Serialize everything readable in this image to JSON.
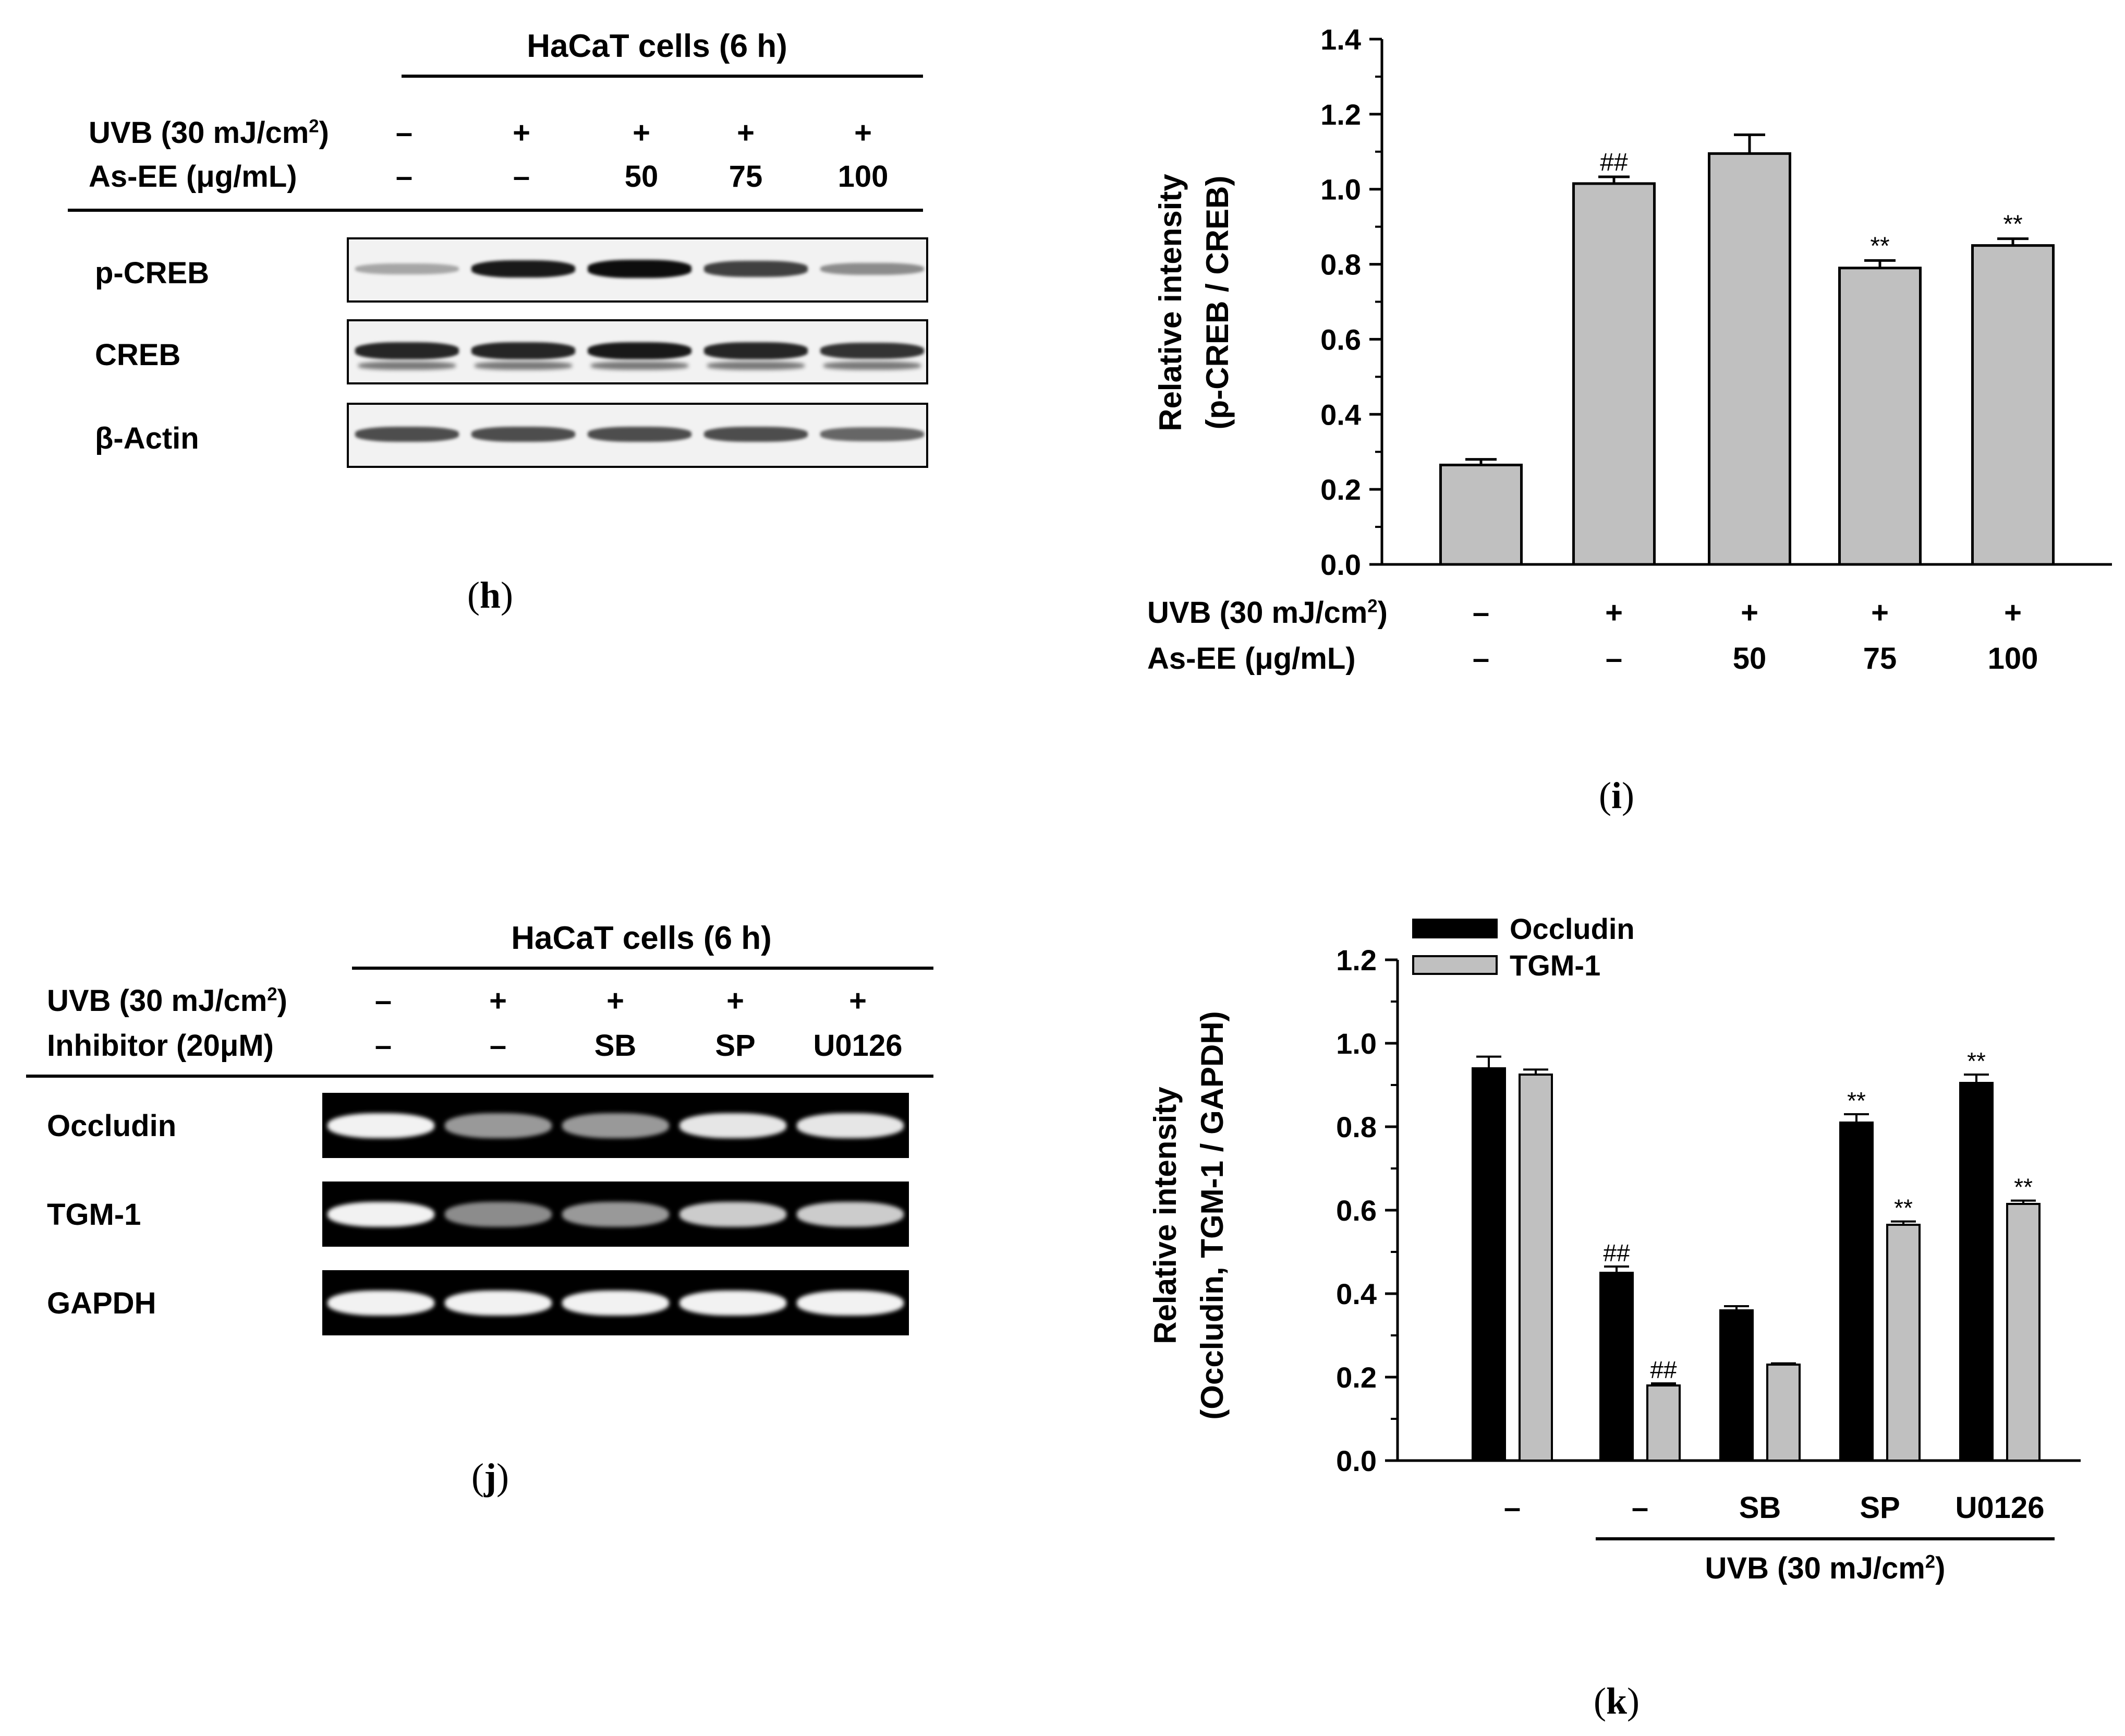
{
  "panel_h": {
    "title": "HaCaT cells (6 h)",
    "row1_label": "UVB (30 mJ/cm",
    "row1_sup": "2",
    "row1_label_end": ")",
    "row1_values": [
      "–",
      "+",
      "+",
      "+",
      "+"
    ],
    "row2_label": "As-EE (μg/mL)",
    "row2_values": [
      "–",
      "–",
      "50",
      "75",
      "100"
    ],
    "bands": [
      {
        "label": "p-CREB",
        "intensity": [
          0.35,
          0.9,
          0.95,
          0.75,
          0.45
        ]
      },
      {
        "label": "CREB",
        "intensity": [
          0.85,
          0.85,
          0.9,
          0.85,
          0.8
        ]
      },
      {
        "label": "β-Actin",
        "intensity": [
          0.7,
          0.7,
          0.7,
          0.7,
          0.6
        ]
      }
    ],
    "panel_label": "h"
  },
  "panel_i": {
    "ylabel_line1": "Relative intensity",
    "ylabel_line2": "(p-CREB / CREB)",
    "row1_label": "UVB (30 mJ/cm",
    "row1_sup": "2",
    "row1_label_end": ")",
    "row1_values": [
      "–",
      "+",
      "+",
      "+",
      "+"
    ],
    "row2_label": "As-EE (μg/mL)",
    "row2_values": [
      "–",
      "–",
      "50",
      "75",
      "100"
    ],
    "panel_label": "i"
  },
  "panel_j": {
    "title": "HaCaT cells (6 h)",
    "row1_label": "UVB (30 mJ/cm",
    "row1_sup": "2",
    "row1_label_end": ")",
    "row1_values": [
      "–",
      "+",
      "+",
      "+",
      "+"
    ],
    "row2_label": "Inhibitor (20μM)",
    "row2_values": [
      "–",
      "–",
      "SB",
      "SP",
      "U0126"
    ],
    "bands": [
      {
        "label": "Occludin",
        "intensity": [
          0.95,
          0.6,
          0.6,
          0.9,
          0.9
        ]
      },
      {
        "label": "TGM-1",
        "intensity": [
          0.95,
          0.55,
          0.6,
          0.8,
          0.8
        ]
      },
      {
        "label": "GAPDH",
        "intensity": [
          0.95,
          0.95,
          0.95,
          0.95,
          0.95
        ]
      }
    ],
    "panel_label": "j"
  },
  "panel_k": {
    "ylabel_line1": "Relative intensity",
    "ylabel_line2": "(Occludin, TGM-1 / GAPDH)",
    "group_caption": "UVB (30 mJ/cm",
    "group_caption_sup": "2",
    "group_caption_end": ")",
    "panel_label": "k"
  },
  "colors": {
    "bar_gray": "#c0c0c0",
    "bar_black": "#000000",
    "axis": "#000000"
  },
  "chart_data": [
    {
      "type": "bar",
      "panel": "i",
      "categories": [
        "–",
        "–",
        "50",
        "75",
        "100"
      ],
      "values": [
        0.265,
        1.015,
        1.095,
        0.79,
        0.85
      ],
      "errors": [
        0.015,
        0.018,
        0.05,
        0.02,
        0.018
      ],
      "annotations": [
        "",
        "##",
        "",
        "**",
        "**"
      ],
      "ylim": [
        0.0,
        1.4
      ],
      "yticks": [
        "0.0",
        "0.2",
        "0.4",
        "0.6",
        "0.8",
        "1.0",
        "1.2",
        "1.4"
      ],
      "ylabel": "Relative intensity (p-CREB / CREB)",
      "grid": false
    },
    {
      "type": "bar",
      "panel": "k",
      "categories": [
        "–",
        "–",
        "SB",
        "SP",
        "U0126"
      ],
      "series": [
        {
          "name": "Occludin",
          "color": "#000000",
          "values": [
            0.94,
            0.45,
            0.36,
            0.81,
            0.905
          ],
          "errors": [
            0.028,
            0.015,
            0.01,
            0.02,
            0.02
          ],
          "annotations": [
            "",
            "##",
            "",
            "**",
            "**"
          ]
        },
        {
          "name": "TGM-1",
          "color": "#c0c0c0",
          "values": [
            0.925,
            0.18,
            0.23,
            0.565,
            0.615
          ],
          "errors": [
            0.012,
            0.005,
            0.003,
            0.008,
            0.008
          ],
          "annotations": [
            "",
            "##",
            "",
            "**",
            "**"
          ]
        }
      ],
      "ylim": [
        0.0,
        1.2
      ],
      "yticks": [
        "0.0",
        "0.2",
        "0.4",
        "0.6",
        "0.8",
        "1.0",
        "1.2"
      ],
      "ylabel": "Relative intensity (Occludin, TGM-1 / GAPDH)",
      "legend": "top-left",
      "grid": false
    }
  ]
}
